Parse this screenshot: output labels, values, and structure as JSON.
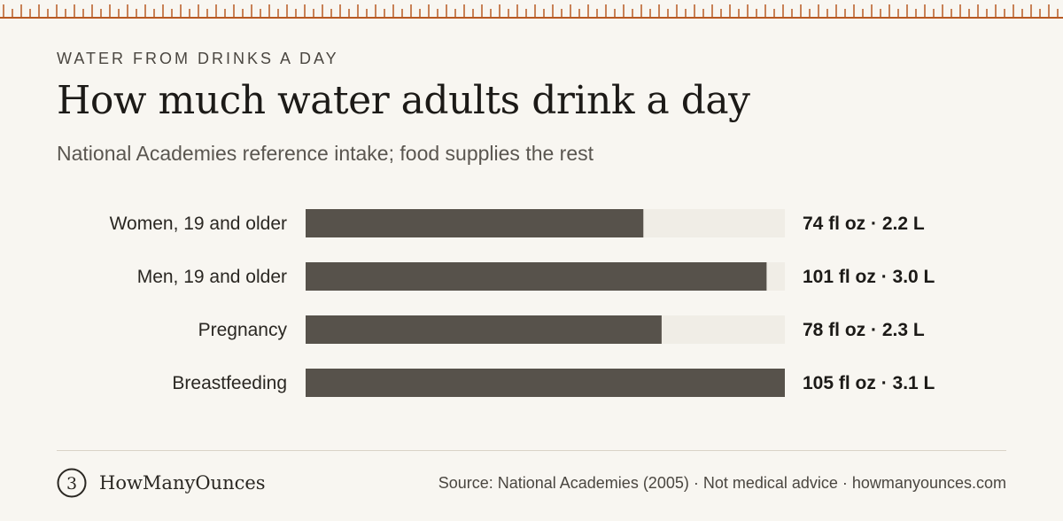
{
  "eyebrow": "WATER FROM DRINKS A DAY",
  "title": "How much water adults drink a day",
  "subtitle": "National Academies reference intake; food supplies the rest",
  "footer": {
    "brand": "HowManyOunces",
    "logo_glyph": "3",
    "source": "Source: National Academies (2005) · Not medical advice · howmanyounces.com"
  },
  "colors": {
    "background": "#f8f6f1",
    "bar": "#57524b",
    "track": "#f0ede6",
    "ruler": "#b85a23"
  },
  "chart_data": {
    "type": "bar",
    "orientation": "horizontal",
    "categories": [
      "Women, 19 and older",
      "Men, 19 and older",
      "Pregnancy",
      "Breastfeeding"
    ],
    "values": [
      74,
      101,
      78,
      105
    ],
    "unit": "fl oz",
    "value_labels": [
      "74 fl oz · 2.2 L",
      "101 fl oz · 3.0 L",
      "78 fl oz · 2.3 L",
      "105 fl oz · 3.1 L"
    ],
    "xlim": [
      0,
      105
    ],
    "grid": false,
    "legend": "none"
  }
}
